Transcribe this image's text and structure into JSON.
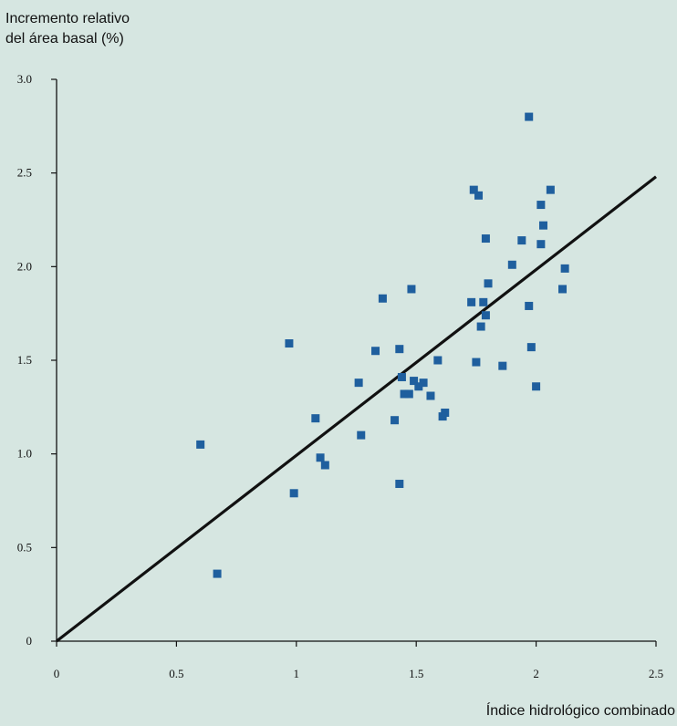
{
  "chart_data": {
    "type": "scatter",
    "ylabel": "Incremento relativo\ndel área basal (%)",
    "xlabel": "Índice hidrológico combinado",
    "xlim": [
      0,
      2.5
    ],
    "ylim": [
      0,
      3.0
    ],
    "x_ticks": [
      "0",
      "0.5",
      "1",
      "1.5",
      "2",
      "2.5"
    ],
    "y_ticks": [
      "0",
      "0.5",
      "1.0",
      "1.5",
      "2.0",
      "2.5",
      "3.0"
    ],
    "grid": false,
    "marker_color": "#1f5f9e",
    "line_color": "#111111",
    "regression_line": {
      "x": [
        0,
        2.5
      ],
      "y": [
        0,
        2.48
      ]
    },
    "points": [
      [
        0.6,
        1.05
      ],
      [
        0.67,
        0.36
      ],
      [
        0.97,
        1.59
      ],
      [
        0.99,
        0.79
      ],
      [
        1.08,
        1.19
      ],
      [
        1.1,
        0.98
      ],
      [
        1.12,
        0.94
      ],
      [
        1.26,
        1.38
      ],
      [
        1.27,
        1.1
      ],
      [
        1.33,
        1.55
      ],
      [
        1.36,
        1.83
      ],
      [
        1.41,
        1.18
      ],
      [
        1.43,
        1.56
      ],
      [
        1.44,
        1.41
      ],
      [
        1.43,
        0.84
      ],
      [
        1.45,
        1.32
      ],
      [
        1.47,
        1.32
      ],
      [
        1.48,
        1.88
      ],
      [
        1.49,
        1.39
      ],
      [
        1.51,
        1.36
      ],
      [
        1.53,
        1.38
      ],
      [
        1.56,
        1.31
      ],
      [
        1.59,
        1.5
      ],
      [
        1.61,
        1.2
      ],
      [
        1.62,
        1.22
      ],
      [
        1.73,
        1.81
      ],
      [
        1.74,
        2.41
      ],
      [
        1.75,
        1.49
      ],
      [
        1.76,
        2.38
      ],
      [
        1.77,
        1.68
      ],
      [
        1.78,
        1.81
      ],
      [
        1.79,
        2.15
      ],
      [
        1.79,
        1.74
      ],
      [
        1.8,
        1.91
      ],
      [
        1.86,
        1.47
      ],
      [
        1.9,
        2.01
      ],
      [
        1.94,
        2.14
      ],
      [
        1.97,
        2.8
      ],
      [
        1.97,
        1.79
      ],
      [
        1.98,
        1.57
      ],
      [
        2.0,
        1.36
      ],
      [
        2.02,
        2.33
      ],
      [
        2.02,
        2.12
      ],
      [
        2.03,
        2.22
      ],
      [
        2.06,
        2.41
      ],
      [
        2.11,
        1.88
      ],
      [
        2.12,
        1.99
      ]
    ]
  }
}
